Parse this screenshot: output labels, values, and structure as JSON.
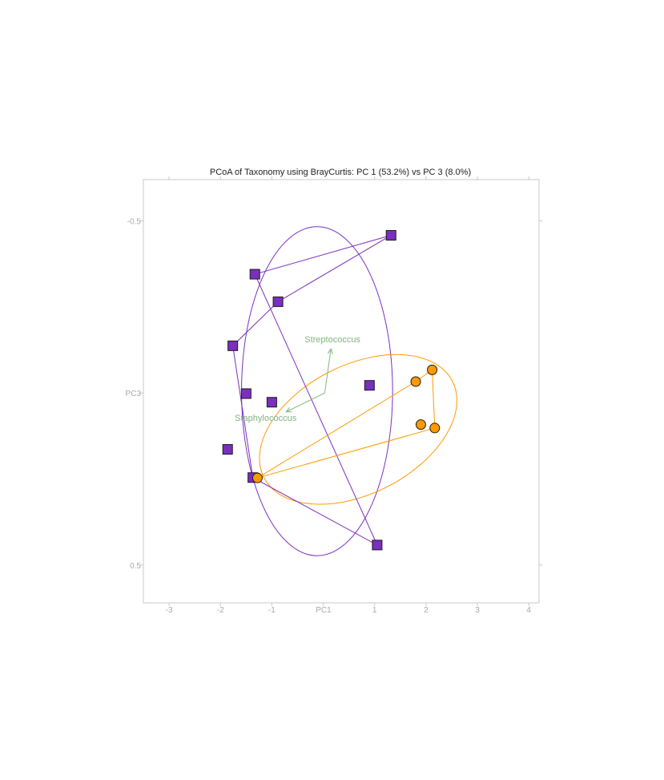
{
  "chart_data": {
    "type": "scatter",
    "title": "PCoA of Taxonomy using BrayCurtis: PC 1 (53.2%) vs PC 3 (8.0%)",
    "xlabel": "PC1",
    "ylabel": "PC3",
    "xlim": [
      -3.5,
      4.2
    ],
    "ylim": [
      -0.62,
      0.61
    ],
    "y_inverted": true,
    "x_ticks": [
      {
        "value": -3,
        "label": "-3"
      },
      {
        "value": -2,
        "label": "-2"
      },
      {
        "value": -1,
        "label": "-1"
      },
      {
        "value": 1,
        "label": "1"
      },
      {
        "value": 2,
        "label": "2"
      },
      {
        "value": 3,
        "label": "3"
      },
      {
        "value": 4,
        "label": "4"
      }
    ],
    "y_ticks": [
      {
        "value": -0.5,
        "label": "-0.5"
      },
      {
        "value": 0.5,
        "label": "0.5"
      }
    ],
    "grid": false,
    "series": [
      {
        "color": "#7b2fbe",
        "marker": "square",
        "hull_order": [
          1,
          0,
          9,
          7,
          3,
          2
        ],
        "x": [
          -1.33,
          1.32,
          -0.88,
          -1.76,
          -1.5,
          -1.0,
          -1.86,
          -1.37,
          0.9,
          1.05
        ],
        "y": [
          -0.345,
          -0.458,
          -0.265,
          -0.137,
          0.002,
          0.027,
          0.164,
          0.246,
          -0.022,
          0.442
        ],
        "ellipse": {
          "cx": -0.12,
          "cy": -0.005,
          "rx": 1.47,
          "ry": 0.478,
          "angle": 0
        }
      },
      {
        "color": "#ff9a00",
        "marker": "circle",
        "hull_order": [
          0,
          1,
          2,
          3
        ],
        "x": [
          -1.28,
          1.8,
          2.12,
          2.17,
          1.9
        ],
        "y": [
          0.247,
          -0.033,
          -0.067,
          0.102,
          0.092
        ],
        "ellipse": {
          "cx": 0.68,
          "cy": 0.106,
          "rx": 2.06,
          "ry": 0.187,
          "angle": -27
        }
      }
    ],
    "biplot_arrows": [
      {
        "label": "Streptococcus",
        "x": 0.15,
        "y": -0.128,
        "label_x": 0.18,
        "label_y": -0.147,
        "color": "#82b382"
      },
      {
        "label": "Staphylococcus",
        "x": -0.72,
        "y": 0.055,
        "label_x": -1.12,
        "label_y": 0.081,
        "color": "#82b382"
      }
    ],
    "arrow_origin": {
      "x": 0.03,
      "y": 0.0
    }
  }
}
